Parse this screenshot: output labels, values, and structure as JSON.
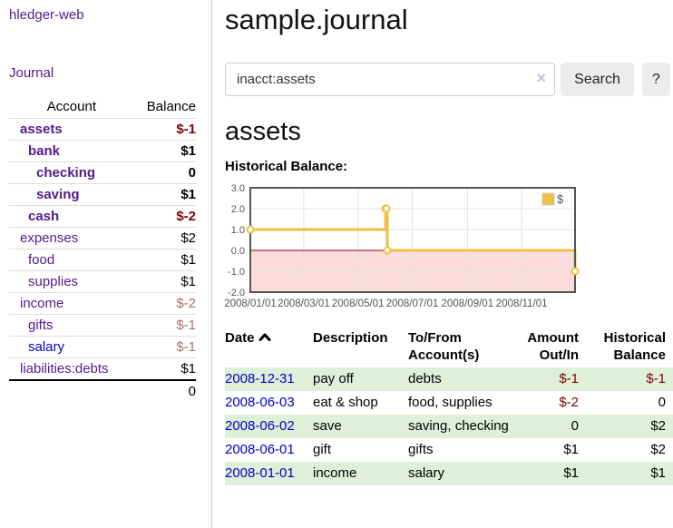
{
  "app": {
    "title": "hledger-web",
    "nav_journal": "Journal"
  },
  "colors": {
    "link_purple": "#551a8b",
    "link_blue": "#0000cc",
    "negative": "#800000",
    "negative_dim": "#b36b6b",
    "row_green": "#dff0d8",
    "chart_gold": "#edc240"
  },
  "sidebar": {
    "header": {
      "account": "Account",
      "balance": "Balance"
    },
    "accounts": [
      {
        "name": "assets",
        "balance": "$-1",
        "level": 1,
        "bold": true,
        "balance_color": "negative"
      },
      {
        "name": "bank",
        "balance": "$1",
        "level": 2,
        "bold": true,
        "balance_color": "normal"
      },
      {
        "name": "checking",
        "balance": "0",
        "level": 3,
        "bold": true,
        "balance_color": "normal"
      },
      {
        "name": "saving",
        "balance": "$1",
        "level": 3,
        "bold": true,
        "balance_color": "normal"
      },
      {
        "name": "cash",
        "balance": "$-2",
        "level": 2,
        "bold": true,
        "balance_color": "negative"
      },
      {
        "name": "expenses",
        "balance": "$2",
        "level": 1,
        "bold": false,
        "balance_color": "normal"
      },
      {
        "name": "food",
        "balance": "$1",
        "level": 2,
        "bold": false,
        "balance_color": "normal"
      },
      {
        "name": "supplies",
        "balance": "$1",
        "level": 2,
        "bold": false,
        "balance_color": "normal"
      },
      {
        "name": "income",
        "balance": "$-2",
        "level": 1,
        "bold": false,
        "balance_color": "negative_dim"
      },
      {
        "name": "gifts",
        "balance": "$-1",
        "level": 2,
        "bold": false,
        "balance_color": "negative_dim"
      },
      {
        "name": "salary",
        "balance": "$-1",
        "level": 2,
        "bold": false,
        "balance_color": "negative_dim",
        "link_color": "blue"
      },
      {
        "name": "liabilities:debts",
        "balance": "$1",
        "level": 1,
        "bold": false,
        "balance_color": "normal",
        "last": true
      }
    ],
    "total": "0"
  },
  "header": {
    "title": "sample.journal"
  },
  "search": {
    "value": "inacct:assets",
    "clear_icon": "×",
    "button": "Search",
    "help_button": "?"
  },
  "account_page": {
    "title": "assets",
    "chart_label": "Historical Balance:"
  },
  "chart_data": {
    "type": "line",
    "style": "step",
    "title": "Historical Balance:",
    "series": [
      {
        "name": "$",
        "color": "#edc240",
        "points": [
          {
            "date": "2008-01-01",
            "value": 1
          },
          {
            "date": "2008-06-01",
            "value": 2
          },
          {
            "date": "2008-06-02",
            "value": 2
          },
          {
            "date": "2008-06-03",
            "value": 0
          },
          {
            "date": "2008-12-31",
            "value": -1
          }
        ]
      }
    ],
    "ylim": [
      -2,
      3
    ],
    "yticks": [
      3.0,
      2.0,
      1.0,
      0.0,
      -1.0,
      -2.0
    ],
    "xticks": [
      "2008/01/01",
      "2008/03/01",
      "2008/05/01",
      "2008/07/01",
      "2008/09/01",
      "2008/11/01"
    ],
    "xrange": [
      "2008-01-01",
      "2008-12-31"
    ],
    "grid": true,
    "legend_position": "top-right",
    "negative_region_color": "#fbdcdc",
    "zero_line_color": "#8b0000"
  },
  "register": {
    "columns": [
      {
        "key": "date",
        "label": "Date",
        "align": "left",
        "sorted": "asc"
      },
      {
        "key": "description",
        "label": "Description",
        "align": "left"
      },
      {
        "key": "accounts",
        "label": "To/From Account(s)",
        "align": "left"
      },
      {
        "key": "amount",
        "label": "Amount Out/In",
        "align": "right"
      },
      {
        "key": "balance",
        "label": "Historical Balance",
        "align": "right"
      }
    ],
    "rows": [
      {
        "date": "2008-12-31",
        "description": "pay off",
        "accounts": "debts",
        "amount": "$-1",
        "amount_negative": true,
        "balance": "$-1",
        "balance_negative": true,
        "highlight": true
      },
      {
        "date": "2008-06-03",
        "description": "eat & shop",
        "accounts": "food, supplies",
        "amount": "$-2",
        "amount_negative": true,
        "balance": "0",
        "balance_negative": false,
        "highlight": false
      },
      {
        "date": "2008-06-02",
        "description": "save",
        "accounts": "saving, checking",
        "amount": "0",
        "amount_negative": false,
        "balance": "$2",
        "balance_negative": false,
        "highlight": true
      },
      {
        "date": "2008-06-01",
        "description": "gift",
        "accounts": "gifts",
        "amount": "$1",
        "amount_negative": false,
        "balance": "$2",
        "balance_negative": false,
        "highlight": false
      },
      {
        "date": "2008-01-01",
        "description": "income",
        "accounts": "salary",
        "amount": "$1",
        "amount_negative": false,
        "balance": "$1",
        "balance_negative": false,
        "highlight": true
      }
    ]
  }
}
